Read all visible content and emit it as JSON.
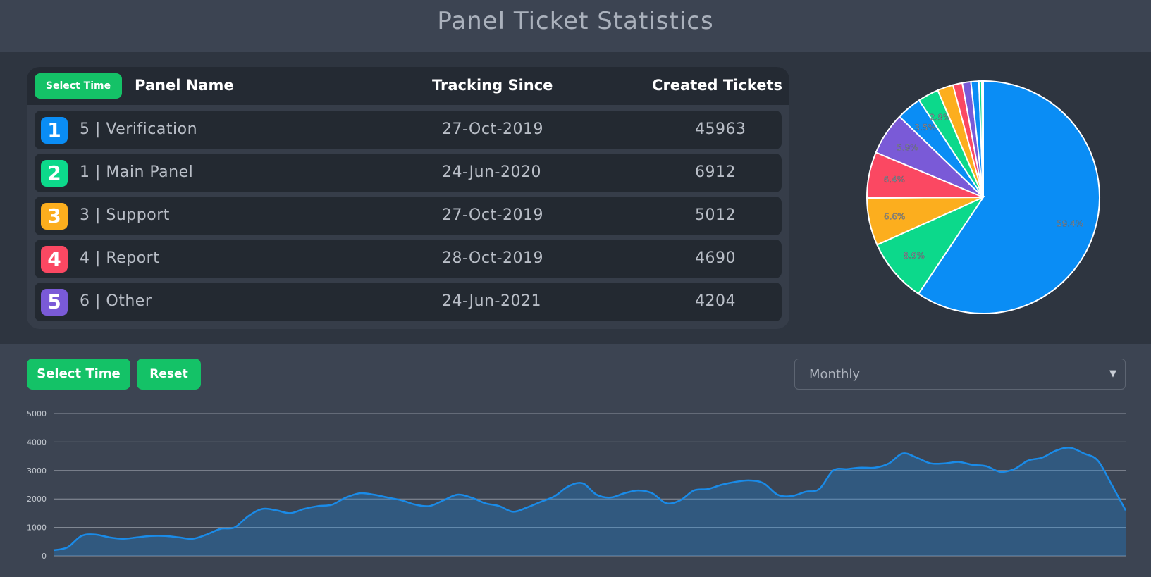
{
  "header": {
    "title": "Panel Ticket Statistics"
  },
  "table": {
    "select_time_label": "Select Time",
    "columns": {
      "name": "Panel Name",
      "since": "Tracking Since",
      "count": "Created Tickets"
    },
    "rows": [
      {
        "rank": "1",
        "name": "5 | Verification",
        "since": "27-Oct-2019",
        "count": "45963",
        "color": "#0a8df5"
      },
      {
        "rank": "2",
        "name": "1 | Main Panel",
        "since": "24-Jun-2020",
        "count": "6912",
        "color": "#0cd98b"
      },
      {
        "rank": "3",
        "name": "3 | Support",
        "since": "27-Oct-2019",
        "count": "5012",
        "color": "#fcae1e"
      },
      {
        "rank": "4",
        "name": "4 | Report",
        "since": "28-Oct-2019",
        "count": "4690",
        "color": "#fb4862"
      },
      {
        "rank": "5",
        "name": "6 | Other",
        "since": "24-Jun-2021",
        "count": "4204",
        "color": "#7a5ad7"
      }
    ]
  },
  "controls": {
    "select_time_label": "Select Time",
    "reset_label": "Reset",
    "interval_selected": "Monthly"
  },
  "chart_data": [
    {
      "type": "pie",
      "values": [
        59.4,
        8.9,
        6.6,
        6.4,
        5.9,
        3.5,
        2.9,
        2.2,
        1.3,
        1.2,
        1.1,
        0.4,
        0.2
      ],
      "labels": [
        "59.4%",
        "8.9%",
        "6.6%",
        "6.4%",
        "5.9%",
        "3.5%",
        "2.9%",
        "",
        "",
        "",
        "",
        "",
        ""
      ],
      "colors": [
        "#0a8df5",
        "#0cd98b",
        "#fcae1e",
        "#fb4862",
        "#7a5ad7",
        "#0a8df5",
        "#0cd98b",
        "#fcae1e",
        "#fb4862",
        "#7a5ad7",
        "#0a8df5",
        "#0cd98b",
        "#fcae1e"
      ]
    },
    {
      "type": "area",
      "ylim": [
        0,
        5000
      ],
      "y_ticks": [
        "0",
        "1000",
        "2000",
        "3000",
        "4000",
        "5000"
      ],
      "grid": true,
      "color": "#1a8be8",
      "values": [
        200,
        300,
        700,
        750,
        650,
        600,
        650,
        700,
        700,
        650,
        600,
        750,
        950,
        1000,
        1400,
        1650,
        1600,
        1500,
        1650,
        1750,
        1800,
        2050,
        2200,
        2150,
        2050,
        1950,
        1800,
        1750,
        1950,
        2150,
        2050,
        1850,
        1750,
        1550,
        1700,
        1900,
        2100,
        2450,
        2550,
        2150,
        2050,
        2200,
        2300,
        2200,
        1850,
        1950,
        2300,
        2350,
        2500,
        2600,
        2650,
        2550,
        2150,
        2100,
        2250,
        2350,
        3000,
        3050,
        3100,
        3100,
        3250,
        3600,
        3450,
        3250,
        3250,
        3300,
        3200,
        3150,
        2950,
        3050,
        3350,
        3450,
        3700,
        3800,
        3600,
        3350,
        2500,
        1600
      ]
    }
  ]
}
